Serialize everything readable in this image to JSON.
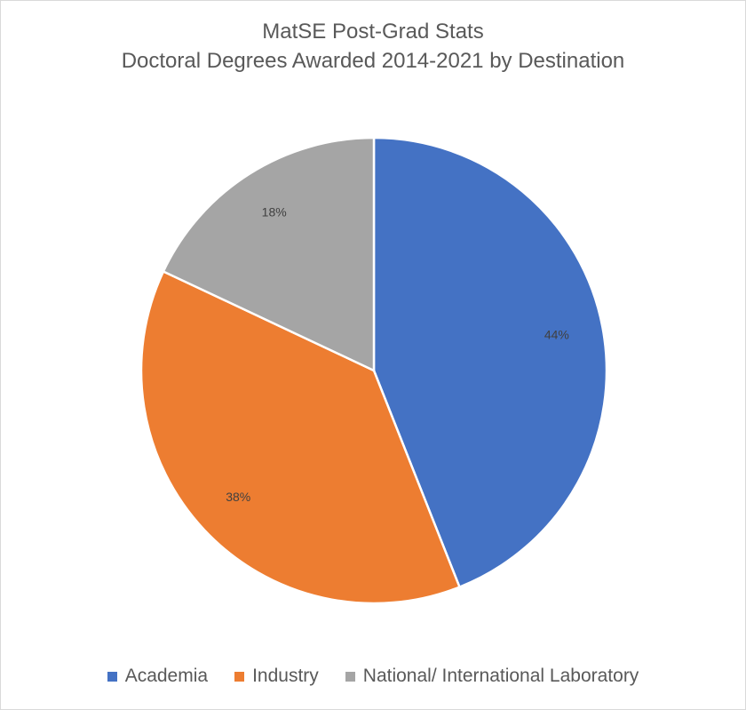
{
  "chart_data": {
    "type": "pie",
    "title": "MatSE Post-Grad Stats",
    "subtitle": "Doctoral Degrees Awarded 2014-2021 by Destination",
    "categories": [
      "Academia",
      "Industry",
      "National/ International Laboratory"
    ],
    "values": [
      44,
      38,
      18
    ],
    "data_labels": [
      "44%",
      "38%",
      "18%"
    ],
    "colors": [
      "#4472c4",
      "#ed7d31",
      "#a5a5a5"
    ],
    "legend_position": "bottom",
    "start_angle": "12 o'clock, clockwise"
  }
}
